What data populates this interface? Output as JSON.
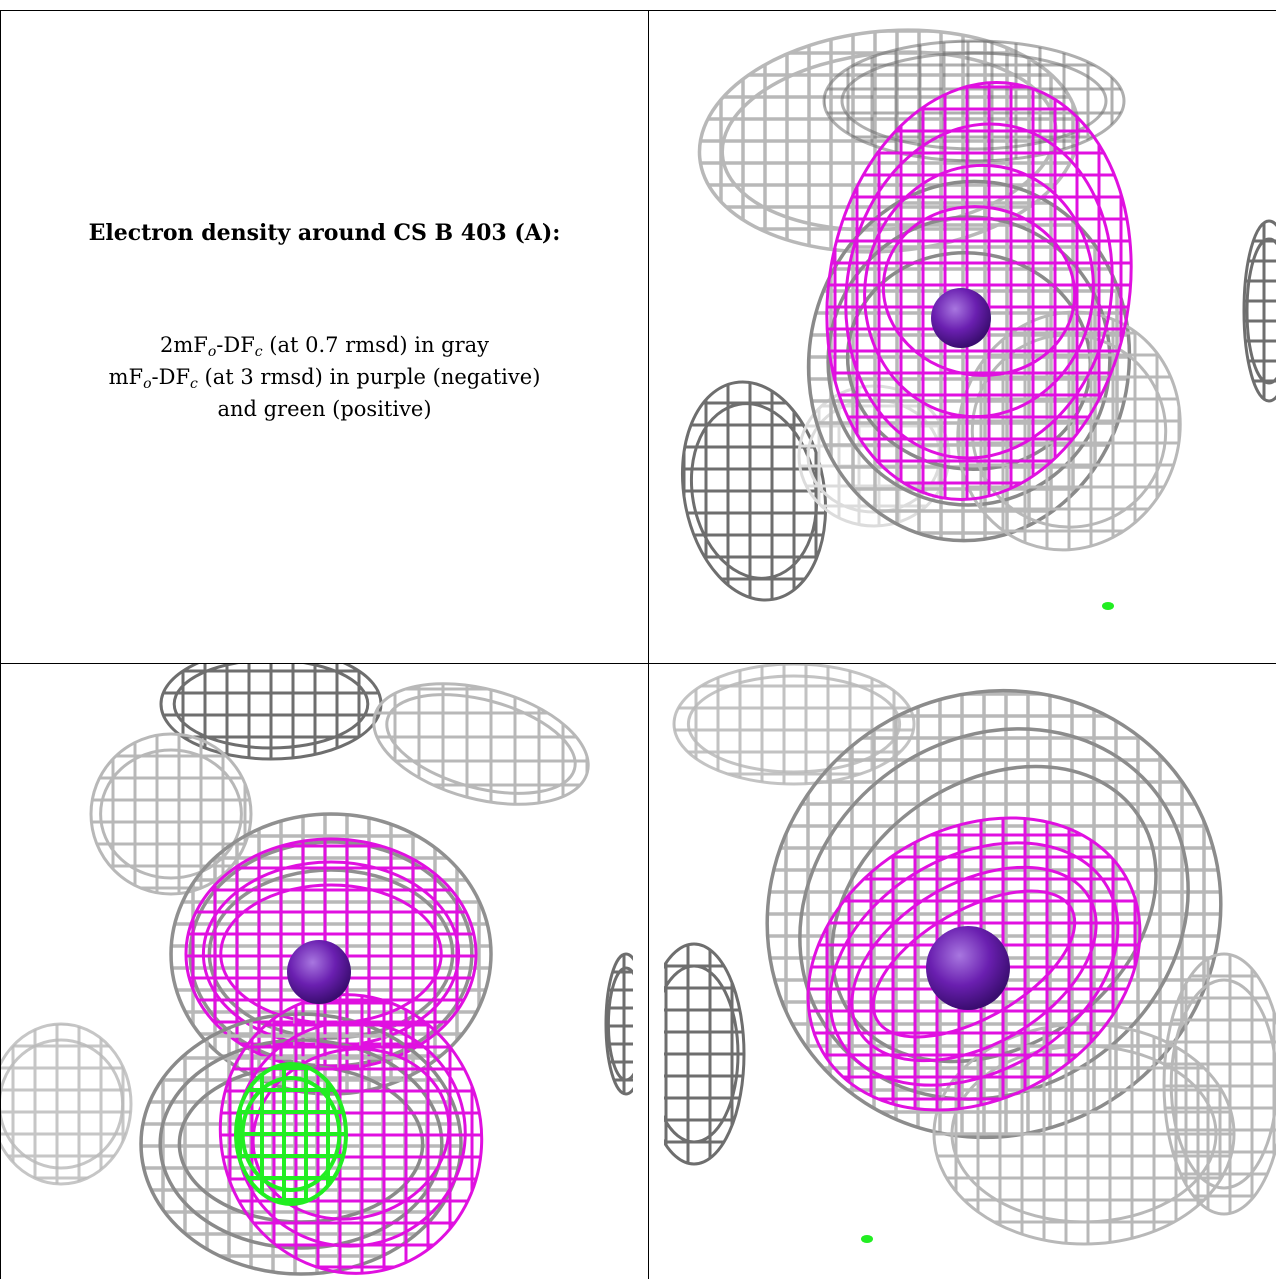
{
  "title": "Electron density around CS B 403 (A):",
  "legend": {
    "line1": {
      "pre": "2mF",
      "sub1": "o",
      "mid": "-DF",
      "sub2": "c",
      "post": " (at 0.7 rmsd) in gray"
    },
    "line2": {
      "pre": "mF",
      "sub1": "o",
      "mid": "-DF",
      "sub2": "c",
      "post": " (at 3 rmsd) in purple (negative)"
    },
    "line3": "and green (positive)"
  },
  "colors": {
    "gray_mesh": "#b8b8b8",
    "gray_mesh_dark": "#6e6e6e",
    "purple_mesh": "#e010e0",
    "green_mesh": "#22ee22",
    "atom": "#6a1fb0"
  },
  "panels": [
    {
      "name": "view-top-right",
      "atom_icon": "cesium-atom-icon"
    },
    {
      "name": "view-bottom-left",
      "atom_icon": "cesium-atom-icon"
    },
    {
      "name": "view-bottom-right",
      "atom_icon": "cesium-atom-icon"
    }
  ]
}
